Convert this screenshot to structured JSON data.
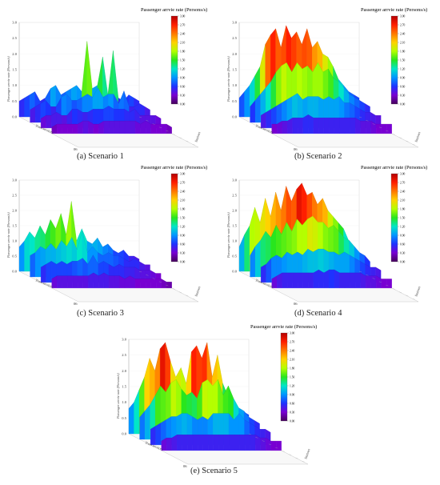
{
  "figure": {
    "colorbar": {
      "title": "Passenger arrvie rate (Persons/s)",
      "ticks": [
        "3.00",
        "2.70",
        "2.40",
        "2.10",
        "1.80",
        "1.50",
        "1.20",
        "0.90",
        "0.60",
        "0.30",
        "0.00"
      ],
      "colors": [
        "#b40000",
        "#ff1e00",
        "#ff7800",
        "#ffd200",
        "#b4ff00",
        "#28e61e",
        "#00e6c8",
        "#0096ff",
        "#1e32ff",
        "#7800d2",
        "#46005a"
      ]
    },
    "axes": {
      "z_ticks": [
        "3.0",
        "2.5",
        "2.0",
        "1.5",
        "1.0",
        "0.5",
        "0.0"
      ],
      "z_label": "Passenger arrvie rate (Persons/s)",
      "x_label": "Train services",
      "y_label": "Stations",
      "x_end_tick": "06"
    },
    "panels": [
      {
        "caption": "(a) Scenario 1"
      },
      {
        "caption": "(b) Scenario 2"
      },
      {
        "caption": "(c) Scenario 3"
      },
      {
        "caption": "(d) Scenario 4"
      },
      {
        "caption": "(e) Scenario 5"
      }
    ]
  },
  "chart_data": [
    {
      "type": "area",
      "title": "Passenger arrvie rate (Persons/s)",
      "zlim": [
        0,
        3
      ],
      "series": [
        {
          "values": [
            0.5,
            0.6,
            0.7,
            0.8,
            0.5,
            0.6,
            0.9,
            1.0,
            0.7,
            0.8,
            0.9,
            1.0,
            0.8,
            2.4,
            0.9,
            1.0,
            1.9,
            0.7,
            2.1,
            0.6,
            0.5,
            0.7,
            0.6,
            0.5
          ]
        },
        {
          "values": [
            0.4,
            0.5,
            0.6,
            0.7,
            0.5,
            0.5,
            0.8,
            0.9,
            0.7,
            0.7,
            0.8,
            0.9,
            0.8,
            1.1,
            0.8,
            0.9,
            0.9,
            0.6,
            1.0,
            0.5,
            0.5,
            0.6,
            0.5,
            0.4
          ]
        },
        {
          "values": [
            0.3,
            0.4,
            0.4,
            0.5,
            0.4,
            0.4,
            0.6,
            0.6,
            0.5,
            0.5,
            0.6,
            0.6,
            0.6,
            0.7,
            0.6,
            0.6,
            0.6,
            0.5,
            0.6,
            0.4,
            0.4,
            0.4,
            0.4,
            0.3
          ]
        },
        {
          "values": [
            0.2,
            0.3,
            0.3,
            0.3,
            0.3,
            0.3,
            0.4,
            0.4,
            0.3,
            0.3,
            0.4,
            0.4,
            0.4,
            0.4,
            0.4,
            0.4,
            0.4,
            0.3,
            0.4,
            0.3,
            0.3,
            0.3,
            0.3,
            0.2
          ]
        }
      ]
    },
    {
      "type": "area",
      "title": "Passenger arrvie rate (Persons/s)",
      "zlim": [
        0,
        3
      ],
      "series": [
        {
          "values": [
            0.6,
            0.8,
            1.0,
            1.3,
            1.6,
            2.3,
            2.6,
            2.8,
            2.2,
            2.9,
            2.5,
            2.7,
            2.3,
            2.8,
            2.2,
            2.4,
            2.0,
            1.9,
            1.6,
            1.2,
            1.0,
            0.8,
            0.7,
            0.6
          ]
        },
        {
          "values": [
            0.5,
            0.7,
            0.9,
            1.1,
            1.3,
            1.6,
            1.8,
            1.9,
            1.6,
            1.9,
            1.7,
            1.8,
            1.6,
            1.9,
            1.6,
            1.7,
            1.4,
            1.3,
            1.1,
            0.9,
            0.8,
            0.7,
            0.6,
            0.5
          ]
        },
        {
          "values": [
            0.4,
            0.5,
            0.6,
            0.7,
            0.8,
            0.9,
            1.0,
            1.1,
            0.9,
            1.0,
            1.0,
            1.0,
            0.9,
            1.0,
            0.9,
            1.0,
            0.8,
            0.8,
            0.7,
            0.6,
            0.5,
            0.5,
            0.4,
            0.4
          ]
        },
        {
          "values": [
            0.3,
            0.3,
            0.4,
            0.4,
            0.5,
            0.5,
            0.5,
            0.6,
            0.5,
            0.5,
            0.5,
            0.5,
            0.5,
            0.5,
            0.5,
            0.5,
            0.5,
            0.4,
            0.4,
            0.4,
            0.3,
            0.3,
            0.3,
            0.3
          ]
        }
      ]
    },
    {
      "type": "area",
      "title": "Passenger arrvie rate (Persons/s)",
      "zlim": [
        0,
        3
      ],
      "series": [
        {
          "values": [
            0.8,
            1.0,
            1.3,
            1.1,
            1.5,
            1.2,
            1.7,
            1.4,
            1.9,
            1.2,
            2.3,
            1.0,
            1.4,
            1.0,
            0.9,
            1.1,
            0.8,
            0.9,
            0.7,
            0.6,
            0.7,
            0.5,
            0.5,
            0.4
          ]
        },
        {
          "values": [
            0.7,
            0.8,
            1.0,
            0.9,
            1.1,
            0.9,
            1.2,
            1.0,
            1.3,
            0.9,
            1.5,
            0.8,
            1.0,
            0.8,
            0.7,
            0.8,
            0.7,
            0.7,
            0.6,
            0.5,
            0.6,
            0.5,
            0.4,
            0.4
          ]
        },
        {
          "values": [
            0.5,
            0.6,
            0.7,
            0.6,
            0.7,
            0.6,
            0.7,
            0.7,
            0.8,
            0.6,
            0.9,
            0.6,
            0.7,
            0.6,
            0.5,
            0.6,
            0.5,
            0.5,
            0.5,
            0.4,
            0.4,
            0.4,
            0.3,
            0.3
          ]
        },
        {
          "values": [
            0.3,
            0.4,
            0.4,
            0.4,
            0.4,
            0.4,
            0.4,
            0.4,
            0.5,
            0.4,
            0.5,
            0.4,
            0.4,
            0.4,
            0.3,
            0.4,
            0.3,
            0.3,
            0.3,
            0.3,
            0.3,
            0.3,
            0.2,
            0.2
          ]
        }
      ]
    },
    {
      "type": "area",
      "title": "Passenger arrvie rate (Persons/s)",
      "zlim": [
        0,
        3
      ],
      "series": [
        {
          "values": [
            0.8,
            1.2,
            1.5,
            2.1,
            1.6,
            2.4,
            1.8,
            2.6,
            2.0,
            2.8,
            2.3,
            2.7,
            2.9,
            2.5,
            2.6,
            2.2,
            2.4,
            2.0,
            1.8,
            1.6,
            1.4,
            1.0,
            0.8,
            0.6
          ]
        },
        {
          "values": [
            0.7,
            1.0,
            1.2,
            1.5,
            1.3,
            1.7,
            1.4,
            1.8,
            1.5,
            1.9,
            1.7,
            1.9,
            2.0,
            1.8,
            1.8,
            1.6,
            1.7,
            1.5,
            1.3,
            1.2,
            1.0,
            0.8,
            0.7,
            0.5
          ]
        },
        {
          "values": [
            0.5,
            0.6,
            0.8,
            0.9,
            0.8,
            1.0,
            0.9,
            1.0,
            0.9,
            1.1,
            1.0,
            1.1,
            1.1,
            1.0,
            1.0,
            0.9,
            1.0,
            0.9,
            0.8,
            0.7,
            0.6,
            0.5,
            0.5,
            0.4
          ]
        },
        {
          "values": [
            0.3,
            0.4,
            0.5,
            0.5,
            0.5,
            0.5,
            0.5,
            0.5,
            0.5,
            0.6,
            0.5,
            0.6,
            0.6,
            0.5,
            0.5,
            0.5,
            0.5,
            0.5,
            0.4,
            0.4,
            0.4,
            0.3,
            0.3,
            0.3
          ]
        }
      ]
    },
    {
      "type": "area",
      "title": "Passenger arrvie rate (Persons/s)",
      "zlim": [
        0,
        3
      ],
      "series": [
        {
          "values": [
            0.8,
            1.0,
            1.4,
            1.8,
            2.4,
            2.0,
            2.7,
            2.9,
            2.3,
            1.8,
            2.1,
            1.6,
            2.6,
            2.8,
            2.4,
            2.9,
            1.8,
            2.5,
            1.6,
            1.2,
            1.0,
            0.8,
            0.7,
            0.6
          ]
        },
        {
          "values": [
            0.7,
            0.9,
            1.1,
            1.4,
            1.7,
            1.5,
            1.8,
            1.9,
            1.6,
            1.4,
            1.5,
            1.3,
            1.8,
            1.9,
            1.7,
            1.9,
            1.4,
            1.7,
            1.3,
            1.0,
            0.9,
            0.7,
            0.6,
            0.5
          ]
        },
        {
          "values": [
            0.5,
            0.6,
            0.7,
            0.8,
            0.9,
            0.9,
            1.0,
            1.0,
            0.9,
            0.8,
            0.9,
            0.8,
            1.0,
            1.0,
            1.0,
            1.0,
            0.8,
            1.0,
            0.8,
            0.7,
            0.6,
            0.5,
            0.5,
            0.4
          ]
        },
        {
          "values": [
            0.3,
            0.4,
            0.4,
            0.5,
            0.5,
            0.5,
            0.5,
            0.5,
            0.5,
            0.5,
            0.5,
            0.5,
            0.5,
            0.5,
            0.5,
            0.5,
            0.5,
            0.5,
            0.5,
            0.4,
            0.4,
            0.3,
            0.3,
            0.3
          ]
        }
      ]
    }
  ]
}
